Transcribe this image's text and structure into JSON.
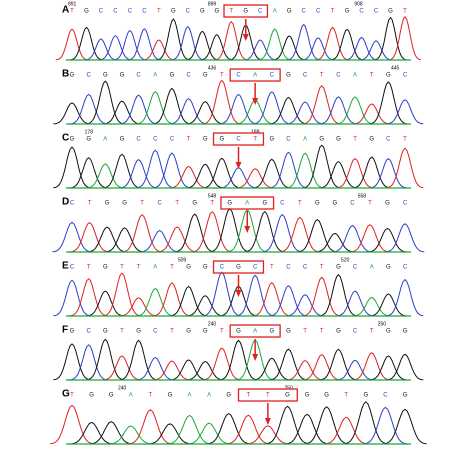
{
  "panels": [
    {
      "label": "A",
      "bases": [
        "T",
        "G",
        "C",
        "C",
        "C",
        "C",
        "T",
        "G",
        "C",
        "G",
        "G",
        "T",
        "G",
        "C",
        "A",
        "G",
        "C",
        "C",
        "T",
        "G",
        "C",
        "C",
        "G",
        "T"
      ],
      "positions": [
        "891",
        "899",
        "908"
      ]
    },
    {
      "label": "B",
      "bases": [
        "G",
        "C",
        "G",
        "G",
        "C",
        "A",
        "G",
        "C",
        "G",
        "T",
        "C",
        "A",
        "C",
        "G",
        "C",
        "T",
        "C",
        "A",
        "T",
        "G",
        "C"
      ],
      "positions": [
        "436",
        "445"
      ]
    },
    {
      "label": "C",
      "bases": [
        "G",
        "G",
        "A",
        "G",
        "C",
        "C",
        "C",
        "T",
        "G",
        "G",
        "C",
        "T",
        "G",
        "C",
        "A",
        "G",
        "G",
        "T",
        "G",
        "C",
        "T"
      ],
      "positions": [
        "178",
        "188"
      ]
    },
    {
      "label": "D",
      "bases": [
        "C",
        "T",
        "G",
        "G",
        "T",
        "C",
        "T",
        "G",
        "T",
        "G",
        "A",
        "G",
        "C",
        "T",
        "G",
        "G",
        "C",
        "T",
        "G",
        "C"
      ],
      "positions": [
        "548",
        "558"
      ]
    },
    {
      "label": "E",
      "bases": [
        "C",
        "T",
        "G",
        "T",
        "T",
        "A",
        "T",
        "G",
        "G",
        "C",
        "G",
        "C",
        "T",
        "C",
        "C",
        "T",
        "G",
        "C",
        "A",
        "G",
        "C"
      ],
      "positions": [
        "509",
        "520"
      ]
    },
    {
      "label": "F",
      "bases": [
        "G",
        "C",
        "G",
        "T",
        "G",
        "C",
        "T",
        "G",
        "G",
        "T",
        "G",
        "A",
        "G",
        "G",
        "T",
        "T",
        "G",
        "C",
        "T",
        "G",
        "G"
      ],
      "positions": [
        "240",
        "250"
      ]
    },
    {
      "label": "G",
      "bases": [
        "T",
        "G",
        "G",
        "A",
        "T",
        "G",
        "A",
        "A",
        "G",
        "T",
        "T",
        "G",
        "G",
        "G",
        "T",
        "G",
        "C",
        "G"
      ],
      "positions": [
        "240",
        "250"
      ]
    }
  ]
}
